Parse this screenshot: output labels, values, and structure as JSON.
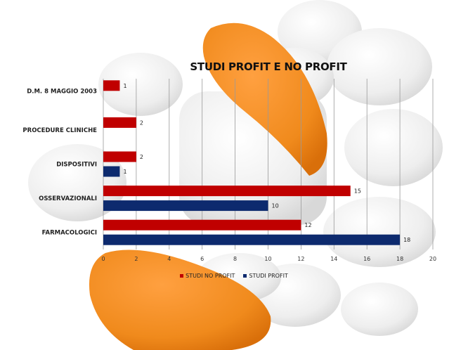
{
  "chart_data": {
    "type": "bar",
    "orientation": "horizontal",
    "title": "STUDI PROFIT E NO PROFIT",
    "categories": [
      "D.M. 8 MAGGIO 2003",
      "PROCEDURE CLINICHE",
      "DISPOSITIVI",
      "OSSERVAZIONALI",
      "FARMACOLOGICI"
    ],
    "series": [
      {
        "name": "STUDI NO PROFIT",
        "color": "#c00000",
        "values": [
          1,
          2,
          2,
          15,
          12
        ]
      },
      {
        "name": "STUDI PROFIT",
        "color": "#0d2a6e",
        "values": [
          null,
          null,
          1,
          10,
          18
        ]
      }
    ],
    "xlim": [
      0,
      20
    ],
    "xticks": [
      0,
      2,
      4,
      6,
      8,
      10,
      12,
      14,
      16,
      18,
      20
    ],
    "grid": "vertical",
    "legend_position": "bottom"
  }
}
